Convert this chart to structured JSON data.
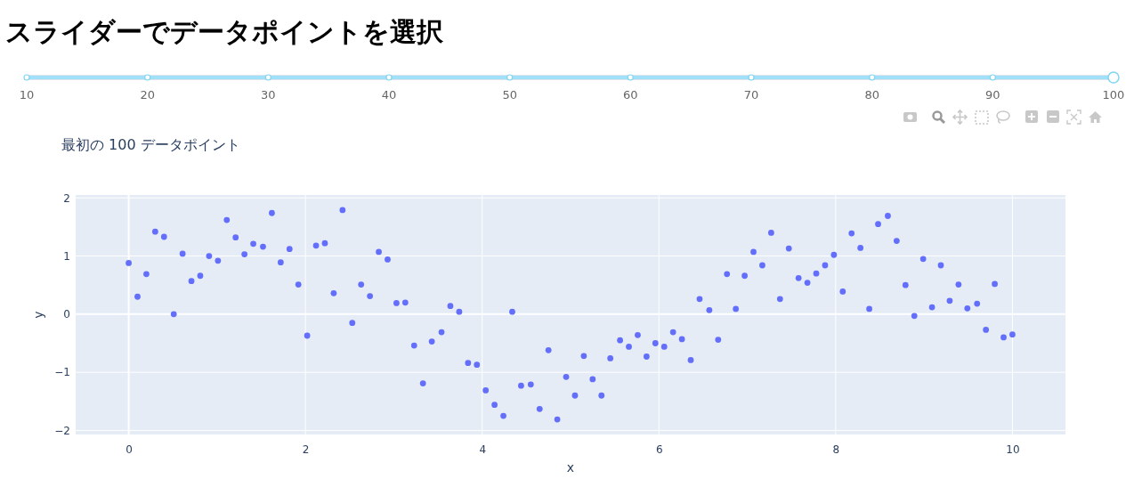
{
  "chart_data": {
    "type": "scatter",
    "title": "スライダーでデータポイントを選択",
    "subtitle": "最初の 100 データポイント",
    "xlabel": "x",
    "ylabel": "y",
    "annotations": [
      "10",
      "20",
      "30",
      "40",
      "50",
      "60",
      "70",
      "80",
      "90",
      "100"
    ],
    "x": [
      0,
      0.1,
      0.2,
      0.3,
      0.4,
      0.51,
      0.61,
      0.71,
      0.81,
      0.91,
      1.01,
      1.11,
      1.21,
      1.31,
      1.41,
      1.52,
      1.62,
      1.72,
      1.82,
      1.92,
      2.02,
      2.12,
      2.22,
      2.32,
      2.42,
      2.53,
      2.63,
      2.73,
      2.83,
      2.93,
      3.03,
      3.13,
      3.23,
      3.33,
      3.43,
      3.54,
      3.64,
      3.74,
      3.84,
      3.94,
      4.04,
      4.14,
      4.24,
      4.34,
      4.44,
      4.55,
      4.65,
      4.75,
      4.85,
      4.95,
      5.05,
      5.15,
      5.25,
      5.35,
      5.45,
      5.56,
      5.66,
      5.76,
      5.86,
      5.96,
      6.06,
      6.16,
      6.26,
      6.36,
      6.46,
      6.57,
      6.67,
      6.77,
      6.87,
      6.97,
      7.07,
      7.17,
      7.27,
      7.37,
      7.47,
      7.58,
      7.68,
      7.78,
      7.88,
      7.98,
      8.08,
      8.18,
      8.28,
      8.38,
      8.48,
      8.59,
      8.69,
      8.79,
      8.89,
      8.99,
      9.09,
      9.19,
      9.29,
      9.39,
      9.49,
      9.6,
      9.7,
      9.8,
      9.9,
      10
    ],
    "series": [
      {
        "color": "#636efa",
        "values": [
          0.88,
          0.3,
          0.69,
          1.42,
          1.33,
          0.0,
          1.04,
          0.57,
          0.66,
          1.0,
          0.92,
          1.62,
          1.32,
          1.03,
          1.21,
          1.16,
          1.74,
          0.89,
          1.12,
          0.51,
          -0.37,
          1.18,
          1.22,
          0.36,
          1.79,
          -0.15,
          0.51,
          0.31,
          1.07,
          0.94,
          0.19,
          0.2,
          -0.54,
          -1.19,
          -0.47,
          -0.31,
          0.14,
          0.04,
          -0.84,
          -0.87,
          -1.31,
          -1.56,
          -1.75,
          0.04,
          -1.23,
          -1.21,
          -1.63,
          -0.62,
          -1.81,
          -1.08,
          -1.4,
          -0.72,
          -1.12,
          -1.4,
          -0.76,
          -0.45,
          -0.56,
          -0.36,
          -0.73,
          -0.5,
          -0.56,
          -0.31,
          -0.43,
          -0.79,
          0.26,
          0.07,
          -0.44,
          0.69,
          0.09,
          0.66,
          1.07,
          0.84,
          1.4,
          0.26,
          1.13,
          0.62,
          0.54,
          0.7,
          0.84,
          1.02,
          0.39,
          1.39,
          1.14,
          0.09,
          1.55,
          1.69,
          1.26,
          0.5,
          -0.03,
          0.95,
          0.12,
          0.84,
          0.23,
          0.51,
          0.1,
          0.18,
          -0.27,
          0.52,
          -0.4,
          -0.35
        ]
      }
    ],
    "xlim": [
      -0.6,
      10.6
    ],
    "ylim": [
      -2.07,
      2.05
    ],
    "xticks": [
      0,
      2,
      4,
      6,
      8,
      10
    ],
    "yticks": [
      -2,
      -1,
      0,
      1,
      2
    ],
    "grid": true,
    "marker": "circle"
  }
}
